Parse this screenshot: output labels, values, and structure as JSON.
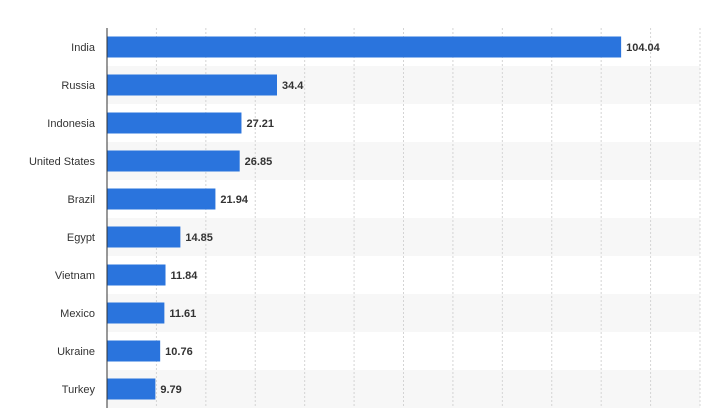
{
  "colors": {
    "bar": "#2a74dd",
    "band": "#f7f7f7",
    "grid": "#d4d4d4",
    "axis": "#333333",
    "text": "#333333"
  },
  "chart_data": {
    "type": "bar",
    "orientation": "horizontal",
    "title": "",
    "xlabel": "",
    "ylabel": "",
    "xlim": [
      0,
      120
    ],
    "grid": true,
    "categories": [
      "India",
      "Russia",
      "Indonesia",
      "United States",
      "Brazil",
      "Egypt",
      "Vietnam",
      "Mexico",
      "Ukraine",
      "Turkey"
    ],
    "values": [
      104.04,
      34.4,
      27.21,
      26.85,
      21.94,
      14.85,
      11.84,
      11.61,
      10.76,
      9.79
    ],
    "value_labels": [
      "104.04",
      "34.4",
      "27.21",
      "26.85",
      "21.94",
      "14.85",
      "11.84",
      "11.61",
      "10.76",
      "9.79"
    ]
  }
}
